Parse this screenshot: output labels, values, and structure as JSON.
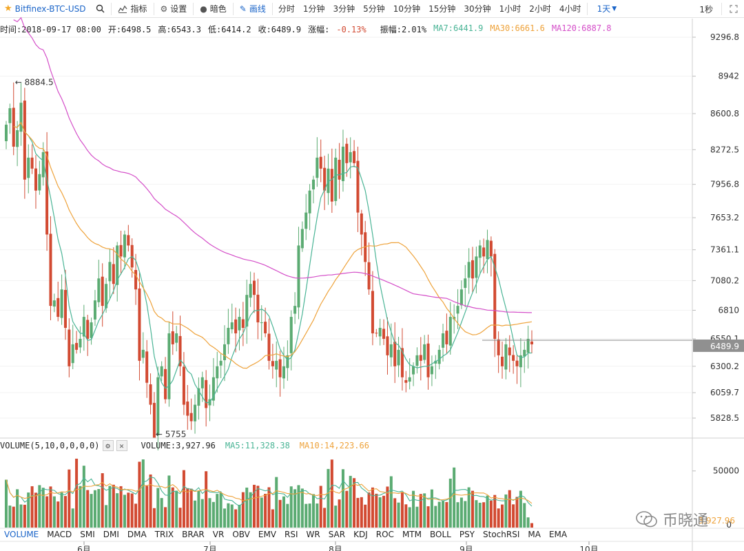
{
  "toolbar": {
    "symbol": "Bitfinex-BTC-USD",
    "buttons": [
      {
        "label": "指标",
        "icon": "indicator-icon"
      },
      {
        "label": "设置",
        "icon": "gear-icon"
      },
      {
        "label": "暗色",
        "icon": "moon-icon"
      },
      {
        "label": "画线",
        "icon": "pencil-icon",
        "active": true
      }
    ],
    "intervals": [
      "分时",
      "1分钟",
      "3分钟",
      "5分钟",
      "10分钟",
      "15分钟",
      "30分钟",
      "1小时",
      "2小时",
      "4小时"
    ],
    "selected_interval": "1天",
    "right_interval": "1秒"
  },
  "info": {
    "time": "时间:2018-09-17 08:00",
    "open": "开:6498.5",
    "high": "高:6543.3",
    "low": "低:6414.2",
    "close": "收:6489.9",
    "change": "-0.13%",
    "change_label": "涨幅:",
    "amplitude": "振幅:2.01%",
    "ma7": "MA7:6441.9",
    "ma30": "MA30:6661.6",
    "ma120": "MA120:6887.8"
  },
  "volume_info": {
    "label": "VOLUME(5,10,0,0,0,0)",
    "volume": "VOLUME:3,927.96",
    "ma5": "MA5:11,328.38",
    "ma10": "MA10:14,223.66"
  },
  "indicators": [
    "VOLUME",
    "MACD",
    "SMI",
    "DMI",
    "DMA",
    "TRIX",
    "BRAR",
    "VR",
    "OBV",
    "EMV",
    "RSI",
    "WR",
    "SAR",
    "KDJ",
    "ROC",
    "MTM",
    "BOLL",
    "PSY",
    "StochRSI",
    "MA",
    "EMA"
  ],
  "chart_data": {
    "type": "candlestick",
    "price_ticks": [
      "9296.8",
      "8942",
      "8600.8",
      "8272.5",
      "7956.8",
      "7653.2",
      "7361.1",
      "7080.2",
      "6810",
      "6550.1",
      "6300.2",
      "6059.7",
      "5828.5"
    ],
    "volume_ticks": [
      "50000",
      "0"
    ],
    "current_price": "6489.9",
    "volume_partial_label": "3,927.96",
    "x_labels": [
      "6月",
      "7月",
      "8月",
      "9月",
      "10月"
    ],
    "high_annotation": "← 8884.5",
    "low_annotation": "← 5755",
    "high_value": 8884.5,
    "low_value": 5755,
    "colors": {
      "up": "#5bab72",
      "down": "#d24a32",
      "ma7": "#49b495",
      "ma30": "#eea23a",
      "ma120": "#d44ec8"
    },
    "closes": [
      8500,
      8650,
      8300,
      8450,
      8700,
      8000,
      8200,
      8100,
      7900,
      8050,
      8250,
      7500,
      6850,
      6900,
      6750,
      7000,
      6650,
      6300,
      6500,
      6450,
      6550,
      6750,
      6550,
      6700,
      6900,
      7100,
      6850,
      7050,
      7250,
      7050,
      7400,
      7300,
      7500,
      7400,
      7200,
      7000,
      6350,
      6450,
      6150,
      5950,
      5650,
      6200,
      6300,
      6000,
      6600,
      6500,
      6600,
      6300,
      5950,
      5850,
      5800,
      5950,
      6100,
      6200,
      5920,
      6000,
      6200,
      6300,
      6350,
      6500,
      6650,
      6700,
      6600,
      6750,
      6650,
      6950,
      7050,
      6950,
      6700,
      6700,
      6600,
      6350,
      6300,
      6350,
      6200,
      6300,
      6400,
      6750,
      6850,
      7400,
      7550,
      7700,
      7900,
      8000,
      8200,
      8100,
      7900,
      8100,
      7800,
      8200,
      8000,
      8300,
      8150,
      8250,
      8150,
      7700,
      7500,
      7250,
      7000,
      6600,
      6600,
      6650,
      6550,
      6400,
      6500,
      6300,
      6450,
      6200,
      6150,
      6200,
      6300,
      6400,
      6350,
      6500,
      6200,
      6300,
      6350,
      6450,
      6600,
      6500,
      6750,
      6750,
      6850,
      7000,
      7100,
      7250,
      7100,
      7300,
      7400,
      7300,
      7450,
      7300,
      6550,
      6400,
      6300,
      6500,
      6400,
      6350,
      6300,
      6400,
      6450,
      6550,
      6500
    ],
    "ma7_note": "MA7/MA30/MA120 computed from closes"
  },
  "watermark": "币晓通"
}
